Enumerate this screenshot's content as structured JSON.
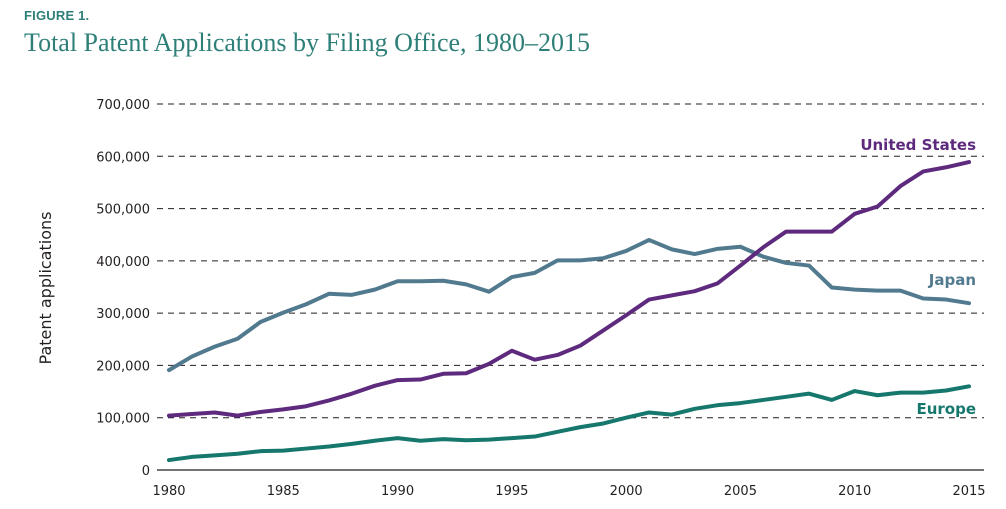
{
  "figure_label": "FIGURE 1.",
  "title": "Total Patent Applications by Filing Office, 1980–2015",
  "chart_data": {
    "type": "line",
    "title": "Total Patent Applications by Filing Office, 1980–2015",
    "xlabel": "",
    "ylabel": "Patent applications",
    "xlim": [
      1980,
      2015
    ],
    "ylim": [
      0,
      700000
    ],
    "x_ticks": [
      1980,
      1985,
      1990,
      1995,
      2000,
      2005,
      2010,
      2015
    ],
    "y_ticks": [
      0,
      100000,
      200000,
      300000,
      400000,
      500000,
      600000,
      700000
    ],
    "y_tick_labels": [
      "0",
      "100,000",
      "200,000",
      "300,000",
      "400,000",
      "500,000",
      "600,000",
      "700,000"
    ],
    "grid": "horizontal-dashed",
    "legend": "inline-right",
    "x": [
      1980,
      1981,
      1982,
      1983,
      1984,
      1985,
      1986,
      1987,
      1988,
      1989,
      1990,
      1991,
      1992,
      1993,
      1994,
      1995,
      1996,
      1997,
      1998,
      1999,
      2000,
      2001,
      2002,
      2003,
      2004,
      2005,
      2006,
      2007,
      2008,
      2009,
      2010,
      2011,
      2012,
      2013,
      2014,
      2015
    ],
    "series": [
      {
        "name": "United States",
        "color": "#5e2a7e",
        "values": [
          104000,
          107000,
          110000,
          104000,
          111000,
          116000,
          122000,
          133000,
          146000,
          161000,
          172000,
          173000,
          184000,
          185000,
          203000,
          228000,
          211000,
          220000,
          238000,
          267000,
          296000,
          326000,
          334000,
          342000,
          357000,
          391000,
          426000,
          456000,
          456000,
          456000,
          490000,
          504000,
          543000,
          571000,
          579000,
          589000
        ]
      },
      {
        "name": "Japan",
        "color": "#527a8f",
        "values": [
          191000,
          217000,
          236000,
          251000,
          283000,
          301000,
          317000,
          337000,
          335000,
          345000,
          361000,
          361000,
          362000,
          355000,
          341000,
          369000,
          377000,
          401000,
          401000,
          405000,
          419000,
          440000,
          422000,
          413000,
          423000,
          427000,
          408000,
          396000,
          391000,
          349000,
          345000,
          343000,
          343000,
          328000,
          326000,
          319000
        ]
      },
      {
        "name": "Europe",
        "color": "#16776d",
        "values": [
          19000,
          25000,
          28000,
          31000,
          36000,
          37000,
          41000,
          45000,
          50000,
          56000,
          61000,
          56000,
          59000,
          57000,
          58000,
          61000,
          64000,
          73000,
          82000,
          89000,
          100000,
          110000,
          106000,
          117000,
          124000,
          128000,
          134000,
          140000,
          146000,
          134000,
          151000,
          143000,
          148000,
          148000,
          152000,
          160000
        ]
      }
    ]
  }
}
